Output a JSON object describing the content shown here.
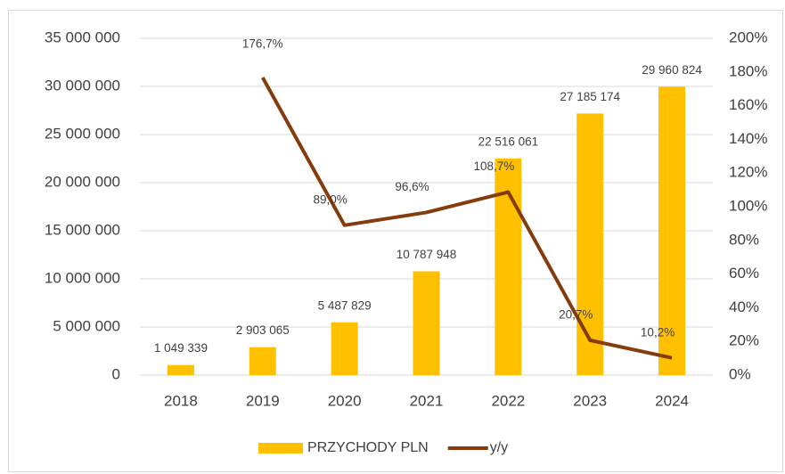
{
  "chart_data": {
    "type": "bar+line",
    "categories": [
      "2018",
      "2019",
      "2020",
      "2021",
      "2022",
      "2023",
      "2024"
    ],
    "series": [
      {
        "name": "PRZYCHODY PLN",
        "type": "bar",
        "color": "#ffc000",
        "values": [
          1049339,
          2903065,
          5487829,
          10787948,
          22516061,
          27185174,
          29960824
        ],
        "value_labels": [
          "1 049 339",
          "2 903 065",
          "5 487 829",
          "10 787 948",
          "22 516 061",
          "27 185 174",
          "29 960 824"
        ]
      },
      {
        "name": "y/y",
        "type": "line",
        "axis": "y2",
        "color": "#843c0c",
        "values": [
          null,
          176.7,
          89.0,
          96.6,
          108.7,
          20.7,
          10.2
        ],
        "value_labels": [
          null,
          "176,7%",
          "89,0%",
          "96,6%",
          "108,7%",
          "20,7%",
          "10,2%"
        ]
      }
    ],
    "ylim": [
      0,
      35000000
    ],
    "yticks": [
      0,
      {
        "value": 5000000,
        "label": "5 000 000"
      },
      {
        "value": 10000000,
        "label": "10 000 000"
      },
      {
        "value": 15000000,
        "label": "15 000 000"
      },
      {
        "value": 20000000,
        "label": "20 000 000"
      },
      {
        "value": 25000000,
        "label": "25 000 000"
      },
      {
        "value": 30000000,
        "label": "30 000 000"
      },
      {
        "value": 35000000,
        "label": "35 000 000"
      }
    ],
    "y2lim": [
      0,
      200
    ],
    "y2ticks": [
      {
        "value": 0,
        "label": "0%"
      },
      {
        "value": 20,
        "label": "20%"
      },
      {
        "value": 40,
        "label": "40%"
      },
      {
        "value": 60,
        "label": "60%"
      },
      {
        "value": 80,
        "label": "80%"
      },
      {
        "value": 100,
        "label": "100%"
      },
      {
        "value": 120,
        "label": "120%"
      },
      {
        "value": 140,
        "label": "140%"
      },
      {
        "value": 160,
        "label": "160%"
      },
      {
        "value": 180,
        "label": "180%"
      },
      {
        "value": 200,
        "label": "200%"
      }
    ],
    "grid": true,
    "legend": "bottom"
  }
}
